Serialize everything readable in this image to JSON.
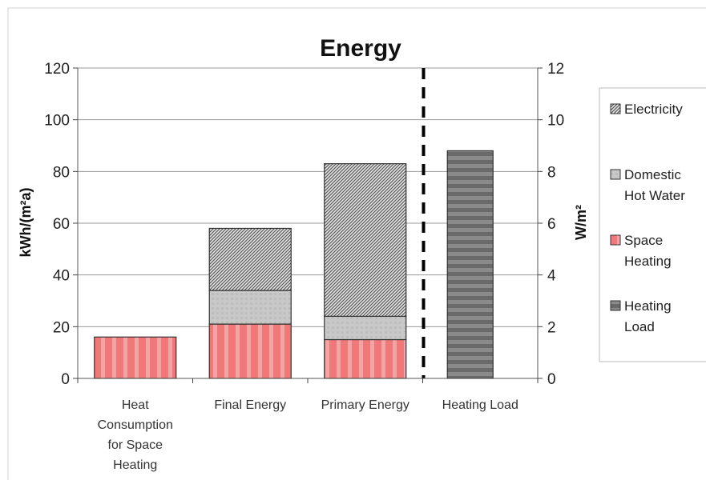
{
  "chart_data": {
    "type": "bar",
    "title": "Energy",
    "ylabel": "kWh/(m²a)",
    "y2label": "W/m²",
    "ylim": [
      0,
      120
    ],
    "y2lim": [
      0,
      12
    ],
    "yticks": [
      "0",
      "20",
      "40",
      "60",
      "80",
      "100",
      "120"
    ],
    "y2ticks": [
      "0",
      "2",
      "4",
      "6",
      "8",
      "10",
      "12"
    ],
    "categories": [
      [
        "Heat",
        "Consumption",
        "for Space",
        "Heating"
      ],
      [
        "Final Energy"
      ],
      [
        "Primary Energy"
      ],
      [
        "Heating Load"
      ]
    ],
    "stacked": true,
    "series": [
      {
        "name": "Space Heating",
        "values": [
          16,
          21,
          15,
          0
        ],
        "color": "#f28080"
      },
      {
        "name": "Domestic Hot Water",
        "values": [
          0,
          13,
          9,
          0
        ],
        "color": "#c4c4c4"
      },
      {
        "name": "Electricity",
        "values": [
          0,
          24,
          59,
          0
        ],
        "color": "#8c8c8c"
      },
      {
        "name": "Heating Load",
        "values": [
          0,
          0,
          0,
          8.8
        ],
        "color": "#6b6b6b",
        "axis": "right"
      }
    ],
    "legend": {
      "placement": "right",
      "entries": [
        {
          "lines": [
            "Electricity"
          ],
          "series": 2
        },
        {
          "lines": [
            "Domestic",
            "Hot Water"
          ],
          "series": 1
        },
        {
          "lines": [
            "Space",
            "Heating"
          ],
          "series": 0
        },
        {
          "lines": [
            "Heating",
            "Load"
          ],
          "series": 3
        }
      ]
    },
    "grid": true,
    "separator": "dashed vertical line between Primary Energy and Heating Load"
  }
}
